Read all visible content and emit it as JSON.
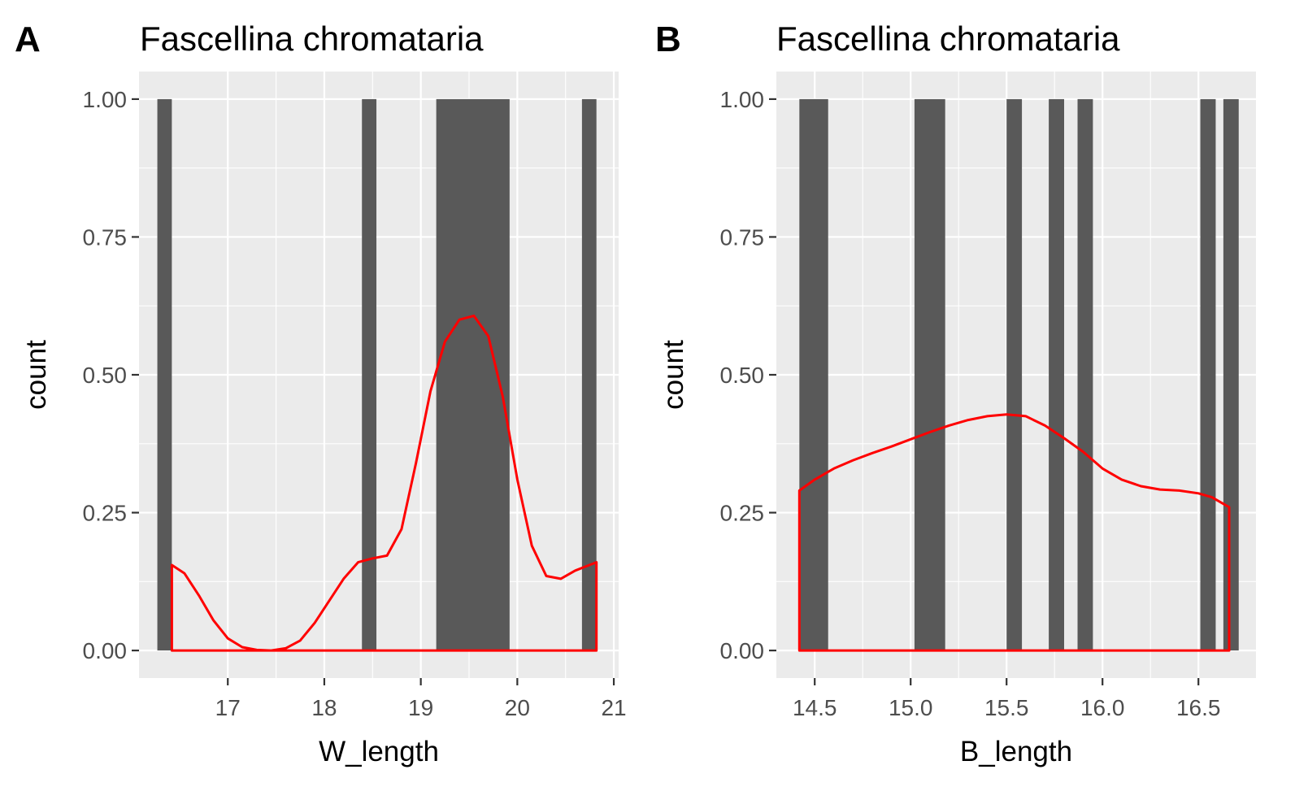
{
  "chart_data": [
    {
      "tag": "A",
      "type": "bar",
      "title": "Fascellina chromataria",
      "xlabel": "W_length",
      "ylabel": "count",
      "xlim": [
        16.08,
        21.05
      ],
      "ylim": [
        -0.05,
        1.05
      ],
      "xticks": [
        17,
        18,
        19,
        20,
        21
      ],
      "xtick_labels": [
        "17",
        "18",
        "19",
        "20",
        "21"
      ],
      "yticks": [
        0,
        0.25,
        0.5,
        0.75,
        1
      ],
      "ytick_labels": [
        "0.00",
        "0.25",
        "0.50",
        "0.75",
        "1.00"
      ],
      "grid": true,
      "bar_color": "#595959",
      "bars": [
        {
          "x0": 16.27,
          "x1": 16.42,
          "count": 1
        },
        {
          "x0": 18.39,
          "x1": 18.54,
          "count": 1
        },
        {
          "x0": 19.16,
          "x1": 19.92,
          "count": 1
        },
        {
          "x0": 20.67,
          "x1": 20.82,
          "count": 1
        }
      ],
      "density_color": "#ff0000",
      "density": {
        "x": [
          16.42,
          16.55,
          16.7,
          16.85,
          17.0,
          17.15,
          17.3,
          17.45,
          17.6,
          17.75,
          17.9,
          18.05,
          18.2,
          18.35,
          18.5,
          18.65,
          18.8,
          18.95,
          19.1,
          19.25,
          19.4,
          19.55,
          19.7,
          19.85,
          20.0,
          20.15,
          20.3,
          20.45,
          20.6,
          20.82
        ],
        "y": [
          0.155,
          0.14,
          0.1,
          0.055,
          0.022,
          0.006,
          0.001,
          0.0,
          0.004,
          0.018,
          0.05,
          0.09,
          0.13,
          0.16,
          0.167,
          0.172,
          0.22,
          0.34,
          0.47,
          0.56,
          0.6,
          0.607,
          0.57,
          0.46,
          0.31,
          0.19,
          0.135,
          0.13,
          0.145,
          0.16
        ]
      }
    },
    {
      "tag": "B",
      "type": "bar",
      "title": "Fascellina chromataria",
      "xlabel": "B_length",
      "ylabel": "count",
      "xlim": [
        14.3,
        16.8
      ],
      "ylim": [
        -0.05,
        1.05
      ],
      "xticks": [
        14.5,
        15.0,
        15.5,
        16.0,
        16.5
      ],
      "xtick_labels": [
        "14.5",
        "15.0",
        "15.5",
        "16.0",
        "16.5"
      ],
      "yticks": [
        0,
        0.25,
        0.5,
        0.75,
        1
      ],
      "ytick_labels": [
        "0.00",
        "0.25",
        "0.50",
        "0.75",
        "1.00"
      ],
      "grid": true,
      "bar_color": "#595959",
      "bars": [
        {
          "x0": 14.42,
          "x1": 14.57,
          "count": 1
        },
        {
          "x0": 15.02,
          "x1": 15.18,
          "count": 1
        },
        {
          "x0": 15.5,
          "x1": 15.58,
          "count": 1
        },
        {
          "x0": 15.72,
          "x1": 15.8,
          "count": 1
        },
        {
          "x0": 15.87,
          "x1": 15.95,
          "count": 1
        },
        {
          "x0": 16.51,
          "x1": 16.59,
          "count": 1
        },
        {
          "x0": 16.63,
          "x1": 16.71,
          "count": 1
        }
      ],
      "density_color": "#ff0000",
      "density": {
        "x": [
          14.42,
          14.5,
          14.6,
          14.7,
          14.8,
          14.9,
          15.0,
          15.1,
          15.2,
          15.3,
          15.4,
          15.5,
          15.6,
          15.7,
          15.8,
          15.9,
          16.0,
          16.1,
          16.2,
          16.3,
          16.4,
          16.5,
          16.57,
          16.66
        ],
        "y": [
          0.29,
          0.31,
          0.33,
          0.345,
          0.358,
          0.37,
          0.383,
          0.396,
          0.408,
          0.418,
          0.425,
          0.428,
          0.425,
          0.408,
          0.385,
          0.36,
          0.33,
          0.31,
          0.298,
          0.292,
          0.29,
          0.285,
          0.278,
          0.26
        ]
      }
    }
  ]
}
